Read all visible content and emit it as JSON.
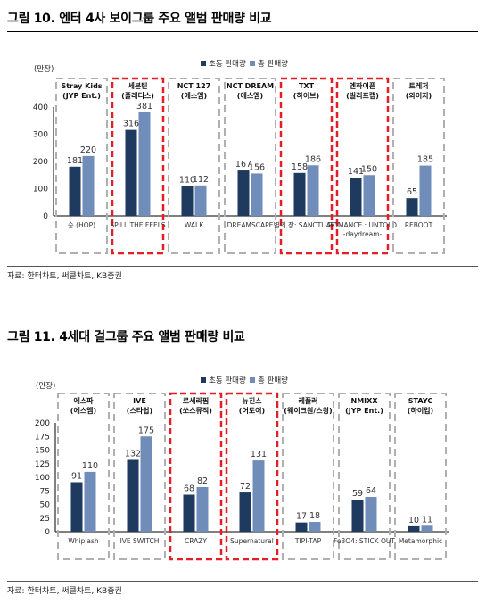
{
  "figures": [
    {
      "title": "그림 10. 엔터 4사 보이그룹 주요 앨범 판매량 비교",
      "source": "자료: 한터차트, 써클차트, KB증권"
    },
    {
      "title": "그림 11. 4세대 걸그룹 주요 앨범 판매량 비교",
      "source": "자료: 한터차트, 써클차트, KB증권"
    }
  ],
  "colors": {
    "first_week": "#1f3a5f",
    "total": "#6f8db8",
    "highlight": "#e31e24",
    "group_border": "#b0b0b0"
  },
  "chart_data": [
    {
      "type": "bar",
      "ylabel": "(만장)",
      "ylim": [
        0,
        400
      ],
      "yticks": [
        0,
        100,
        200,
        300,
        400
      ],
      "legend": {
        "position": "top-center",
        "entries": [
          "초동 판매량",
          "총 판매량"
        ]
      },
      "groups": [
        {
          "artist": "Stray Kids",
          "label": "(JYP Ent.)",
          "album": "승 (HOP)",
          "highlight": false
        },
        {
          "artist": "세븐틴",
          "label": "(플레디스)",
          "album": "SPILL THE FEELS",
          "highlight": true
        },
        {
          "artist": "NCT 127",
          "label": "(에스엠)",
          "album": "WALK",
          "highlight": false
        },
        {
          "artist": "NCT DREAM",
          "label": "(에스엠)",
          "album": "DREAMSCAPE",
          "highlight": false
        },
        {
          "artist": "TXT",
          "label": "(하이브)",
          "album": "별의 장: SANCTUARY",
          "highlight": true
        },
        {
          "artist": "엔하이픈",
          "label": "(빌리프랩)",
          "album": "ROMANCE : UNTOLD -daydream-",
          "highlight": true
        },
        {
          "artist": "트레저",
          "label": "(와이지)",
          "album": "REBOOT",
          "highlight": false
        }
      ],
      "series": [
        {
          "name": "초동 판매량",
          "values": [
            181,
            316,
            110,
            167,
            158,
            141,
            65
          ]
        },
        {
          "name": "총 판매량",
          "values": [
            220,
            381,
            112,
            156,
            186,
            150,
            185
          ]
        }
      ]
    },
    {
      "type": "bar",
      "ylabel": "(만장)",
      "ylim": [
        0,
        200
      ],
      "yticks": [
        0,
        25,
        50,
        75,
        100,
        125,
        150,
        175,
        200
      ],
      "legend": {
        "position": "top-center",
        "entries": [
          "초동 판매량",
          "총 판매량"
        ]
      },
      "groups": [
        {
          "artist": "에스파",
          "label": "(에스엠)",
          "album": "Whiplash",
          "highlight": false
        },
        {
          "artist": "IVE",
          "label": "(스타쉽)",
          "album": "IVE SWITCH",
          "highlight": false
        },
        {
          "artist": "르세라핌",
          "label": "(쏘스뮤직)",
          "album": "CRAZY",
          "highlight": true
        },
        {
          "artist": "뉴진스",
          "label": "(어도어)",
          "album": "Supernatural",
          "highlight": true
        },
        {
          "artist": "케플러",
          "label": "(웨이크원/스윙)",
          "album": "TIPI-TAP",
          "highlight": false
        },
        {
          "artist": "NMIXX",
          "label": "(JYP Ent.)",
          "album": "Fe3O4: STICK OUT",
          "highlight": false
        },
        {
          "artist": "STAYC",
          "label": "(하이업)",
          "album": "Metamorphic",
          "highlight": false
        }
      ],
      "series": [
        {
          "name": "초동 판매량",
          "values": [
            91,
            132,
            68,
            72,
            17,
            59,
            10
          ]
        },
        {
          "name": "총 판매량",
          "values": [
            110,
            175,
            82,
            131,
            18,
            64,
            11
          ]
        }
      ]
    }
  ]
}
